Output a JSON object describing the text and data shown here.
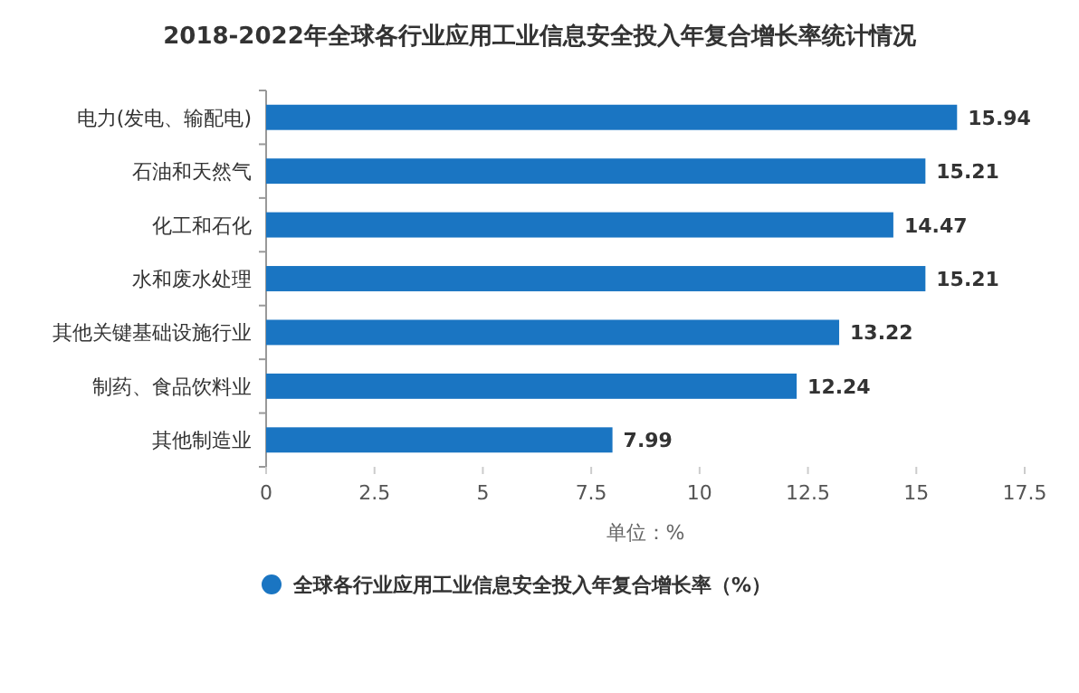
{
  "chart_data": {
    "type": "bar",
    "orientation": "horizontal",
    "title": "2018-2022年全球各行业应用工业信息安全投入年复合增长率统计情况",
    "xlabel": "单位：%",
    "categories": [
      "电力(发电、输配电)",
      "石油和天然气",
      "化工和石化",
      "水和废水处理",
      "其他关键基础设施行业",
      "制药、食品饮料业",
      "其他制造业"
    ],
    "series": [
      {
        "name": "全球各行业应用工业信息安全投入年复合增长率（%）",
        "color": "#1a75c2",
        "values": [
          15.94,
          15.21,
          14.47,
          15.21,
          13.22,
          12.24,
          7.99
        ]
      }
    ],
    "xlim": [
      0,
      17.5
    ],
    "xticks": [
      0,
      2.5,
      5,
      7.5,
      10,
      12.5,
      15,
      17.5
    ],
    "data_labels": true,
    "legend": "bottom",
    "grid": false
  }
}
